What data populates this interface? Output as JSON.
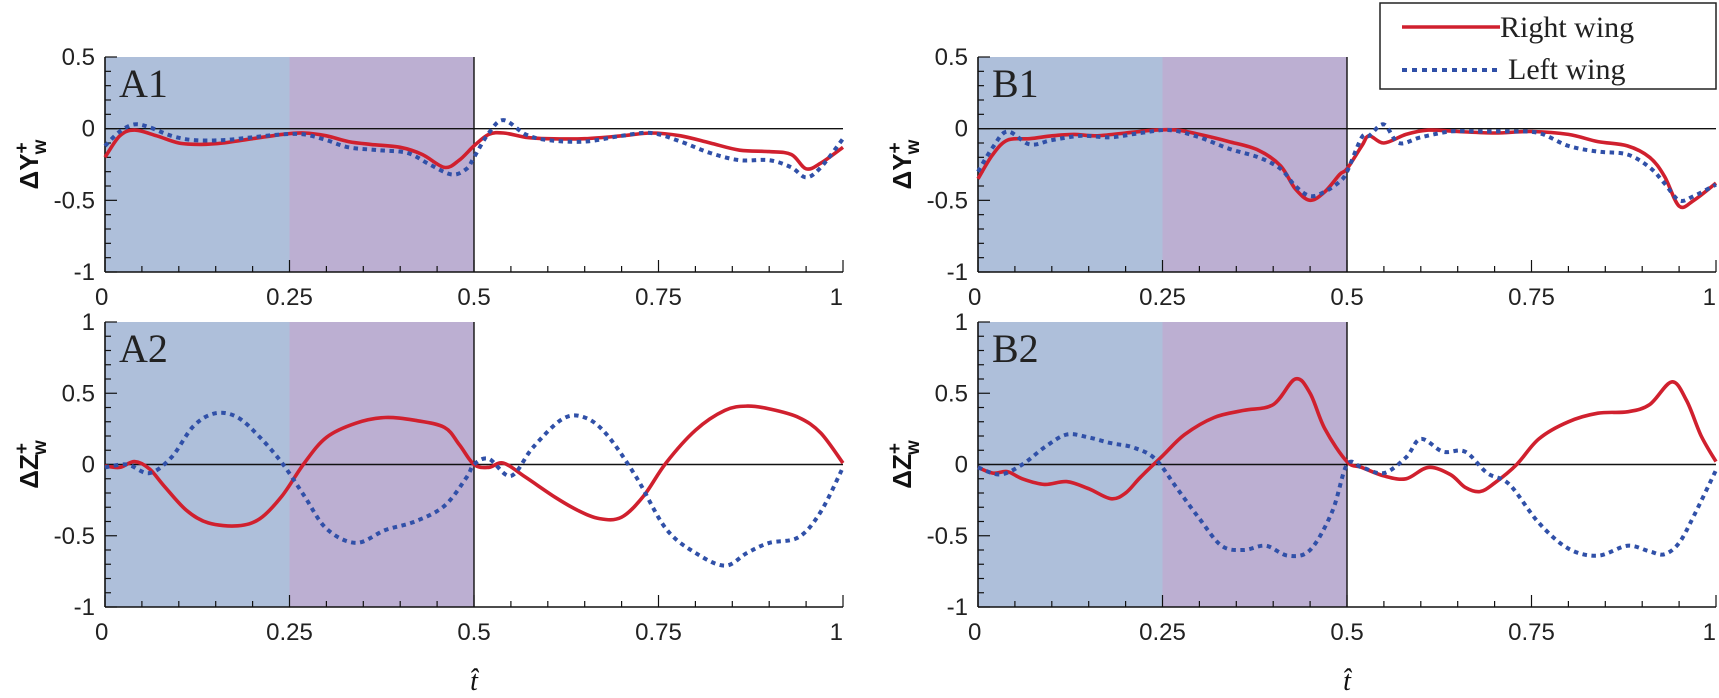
{
  "colors": {
    "right_wing": "#d0202e",
    "left_wing": "#3050a8",
    "phase1_band": "#aebfda",
    "phase2_band": "#bcafd2"
  },
  "legend": {
    "right_label": "Right wing",
    "left_label": "Left wing"
  },
  "chart_data": [
    {
      "panel": "A1",
      "type": "line",
      "ylabel": "ΔY",
      "ylabel_sup": "+",
      "ylabel_sub": "w",
      "xlabel": "",
      "xlim": [
        0,
        1
      ],
      "ylim": [
        -1,
        0.5
      ],
      "xticks": [
        0,
        0.25,
        0.5,
        0.75,
        1
      ],
      "xtick_labels": [
        "0",
        "0.25",
        "0.5",
        "0.75",
        "1"
      ],
      "yticks": [
        0.5,
        0,
        -0.5,
        -1
      ],
      "ytick_labels": [
        "0.5",
        "0",
        "-0.5",
        "-1"
      ],
      "shaded_bands": [
        [
          0,
          0.25
        ],
        [
          0.25,
          0.5
        ]
      ],
      "series": [
        {
          "name": "Right wing",
          "style": "solid",
          "x": [
            0,
            0.02,
            0.04,
            0.07,
            0.1,
            0.13,
            0.16,
            0.2,
            0.24,
            0.27,
            0.3,
            0.33,
            0.36,
            0.4,
            0.43,
            0.46,
            0.48,
            0.5,
            0.52,
            0.54,
            0.57,
            0.6,
            0.65,
            0.7,
            0.74,
            0.78,
            0.82,
            0.86,
            0.9,
            0.93,
            0.95,
            0.97,
            1
          ],
          "y": [
            -0.2,
            -0.05,
            -0.01,
            -0.05,
            -0.1,
            -0.11,
            -0.1,
            -0.07,
            -0.04,
            -0.03,
            -0.05,
            -0.09,
            -0.11,
            -0.13,
            -0.18,
            -0.27,
            -0.22,
            -0.12,
            -0.04,
            -0.03,
            -0.06,
            -0.07,
            -0.07,
            -0.05,
            -0.03,
            -0.05,
            -0.1,
            -0.15,
            -0.16,
            -0.18,
            -0.28,
            -0.24,
            -0.13
          ]
        },
        {
          "name": "Left wing",
          "style": "dotted",
          "x": [
            0,
            0.02,
            0.04,
            0.06,
            0.09,
            0.12,
            0.16,
            0.2,
            0.24,
            0.27,
            0.3,
            0.33,
            0.37,
            0.41,
            0.44,
            0.47,
            0.49,
            0.5,
            0.52,
            0.54,
            0.57,
            0.6,
            0.65,
            0.7,
            0.74,
            0.78,
            0.82,
            0.86,
            0.9,
            0.93,
            0.95,
            0.97,
            1
          ],
          "y": [
            -0.12,
            -0.02,
            0.03,
            0.01,
            -0.05,
            -0.08,
            -0.08,
            -0.06,
            -0.04,
            -0.04,
            -0.08,
            -0.13,
            -0.15,
            -0.17,
            -0.25,
            -0.32,
            -0.28,
            -0.2,
            -0.03,
            0.06,
            -0.04,
            -0.08,
            -0.09,
            -0.05,
            -0.03,
            -0.09,
            -0.17,
            -0.22,
            -0.22,
            -0.27,
            -0.34,
            -0.27,
            -0.07
          ]
        }
      ]
    },
    {
      "panel": "A2",
      "type": "line",
      "ylabel": "ΔZ",
      "ylabel_sup": "+",
      "ylabel_sub": "w",
      "xlabel": "t̂",
      "xlim": [
        0,
        1
      ],
      "ylim": [
        -1,
        1
      ],
      "xticks": [
        0,
        0.25,
        0.5,
        0.75,
        1
      ],
      "xtick_labels": [
        "0",
        "0.25",
        "0.5",
        "0.75",
        "1"
      ],
      "yticks": [
        1,
        0.5,
        0,
        -0.5,
        -1
      ],
      "ytick_labels": [
        "1",
        "0.5",
        "0",
        "-0.5",
        "-1"
      ],
      "shaded_bands": [
        [
          0,
          0.25
        ],
        [
          0.25,
          0.5
        ]
      ],
      "series": [
        {
          "name": "Right wing",
          "style": "solid",
          "x": [
            0,
            0.02,
            0.04,
            0.06,
            0.08,
            0.11,
            0.14,
            0.18,
            0.21,
            0.24,
            0.27,
            0.3,
            0.34,
            0.38,
            0.42,
            0.46,
            0.48,
            0.5,
            0.52,
            0.54,
            0.57,
            0.61,
            0.64,
            0.67,
            0.7,
            0.73,
            0.76,
            0.8,
            0.84,
            0.87,
            0.9,
            0.94,
            0.97,
            1
          ],
          "y": [
            -0.01,
            -0.02,
            0.02,
            -0.03,
            -0.15,
            -0.32,
            -0.41,
            -0.43,
            -0.38,
            -0.22,
            0.01,
            0.19,
            0.29,
            0.33,
            0.31,
            0.26,
            0.14,
            0.0,
            -0.02,
            0.01,
            -0.09,
            -0.23,
            -0.32,
            -0.38,
            -0.37,
            -0.22,
            0.01,
            0.24,
            0.38,
            0.41,
            0.39,
            0.33,
            0.22,
            0.01
          ]
        },
        {
          "name": "Left wing",
          "style": "dotted",
          "x": [
            0,
            0.03,
            0.06,
            0.09,
            0.12,
            0.15,
            0.18,
            0.21,
            0.24,
            0.27,
            0.3,
            0.34,
            0.38,
            0.42,
            0.46,
            0.49,
            0.5,
            0.52,
            0.55,
            0.58,
            0.62,
            0.65,
            0.68,
            0.72,
            0.76,
            0.8,
            0.84,
            0.87,
            0.9,
            0.94,
            0.97,
            1
          ],
          "y": [
            -0.02,
            0.0,
            -0.06,
            0.05,
            0.27,
            0.36,
            0.33,
            0.19,
            0.01,
            -0.22,
            -0.45,
            -0.55,
            -0.46,
            -0.4,
            -0.29,
            -0.09,
            0.0,
            0.04,
            -0.08,
            0.12,
            0.32,
            0.33,
            0.21,
            -0.09,
            -0.45,
            -0.62,
            -0.71,
            -0.62,
            -0.55,
            -0.51,
            -0.33,
            -0.02
          ]
        }
      ]
    },
    {
      "panel": "B1",
      "type": "line",
      "ylabel": "ΔY",
      "ylabel_sup": "+",
      "ylabel_sub": "w",
      "xlabel": "",
      "xlim": [
        0,
        1
      ],
      "ylim": [
        -1,
        0.5
      ],
      "xticks": [
        0,
        0.25,
        0.5,
        0.75,
        1
      ],
      "xtick_labels": [
        "0",
        "0.25",
        "0.5",
        "0.75",
        "1"
      ],
      "yticks": [
        0.5,
        0,
        -0.5,
        -1
      ],
      "ytick_labels": [
        "0.5",
        "0",
        "-0.5",
        "-1"
      ],
      "shaded_bands": [
        [
          0,
          0.25
        ],
        [
          0.25,
          0.5
        ]
      ],
      "series": [
        {
          "name": "Right wing",
          "style": "solid",
          "x": [
            0,
            0.02,
            0.04,
            0.07,
            0.1,
            0.13,
            0.16,
            0.2,
            0.24,
            0.27,
            0.3,
            0.34,
            0.38,
            0.41,
            0.43,
            0.45,
            0.47,
            0.49,
            0.5,
            0.52,
            0.53,
            0.55,
            0.58,
            0.61,
            0.65,
            0.7,
            0.75,
            0.8,
            0.84,
            0.88,
            0.91,
            0.93,
            0.95,
            0.97,
            1
          ],
          "y": [
            -0.35,
            -0.18,
            -0.08,
            -0.07,
            -0.05,
            -0.04,
            -0.05,
            -0.03,
            -0.01,
            -0.01,
            -0.04,
            -0.09,
            -0.15,
            -0.26,
            -0.42,
            -0.5,
            -0.44,
            -0.32,
            -0.28,
            -0.12,
            -0.05,
            -0.1,
            -0.04,
            -0.01,
            -0.02,
            -0.03,
            -0.02,
            -0.04,
            -0.09,
            -0.12,
            -0.2,
            -0.33,
            -0.54,
            -0.5,
            -0.38
          ]
        },
        {
          "name": "Left wing",
          "style": "dotted",
          "x": [
            0,
            0.02,
            0.04,
            0.07,
            0.1,
            0.14,
            0.18,
            0.22,
            0.26,
            0.3,
            0.34,
            0.38,
            0.41,
            0.43,
            0.45,
            0.47,
            0.49,
            0.5,
            0.52,
            0.53,
            0.55,
            0.57,
            0.6,
            0.64,
            0.68,
            0.72,
            0.76,
            0.8,
            0.84,
            0.88,
            0.91,
            0.93,
            0.95,
            0.97,
            1
          ],
          "y": [
            -0.3,
            -0.13,
            -0.02,
            -0.11,
            -0.08,
            -0.05,
            -0.06,
            -0.03,
            -0.01,
            -0.06,
            -0.14,
            -0.2,
            -0.28,
            -0.4,
            -0.47,
            -0.44,
            -0.37,
            -0.3,
            -0.06,
            -0.05,
            0.03,
            -0.1,
            -0.06,
            -0.02,
            -0.02,
            -0.02,
            -0.03,
            -0.12,
            -0.16,
            -0.18,
            -0.27,
            -0.38,
            -0.5,
            -0.47,
            -0.39
          ]
        }
      ]
    },
    {
      "panel": "B2",
      "type": "line",
      "ylabel": "ΔZ",
      "ylabel_sup": "+",
      "ylabel_sub": "w",
      "xlabel": "t̂",
      "xlim": [
        0,
        1
      ],
      "ylim": [
        -1,
        1
      ],
      "xticks": [
        0,
        0.25,
        0.5,
        0.75,
        1
      ],
      "xtick_labels": [
        "0",
        "0.25",
        "0.5",
        "0.75",
        "1"
      ],
      "yticks": [
        1,
        0.5,
        0,
        -0.5,
        -1
      ],
      "ytick_labels": [
        "1",
        "0.5",
        "0",
        "-0.5",
        "-1"
      ],
      "shaded_bands": [
        [
          0,
          0.25
        ],
        [
          0.25,
          0.5
        ]
      ],
      "series": [
        {
          "name": "Right wing",
          "style": "solid",
          "x": [
            0,
            0.02,
            0.04,
            0.06,
            0.09,
            0.12,
            0.15,
            0.18,
            0.2,
            0.22,
            0.25,
            0.28,
            0.32,
            0.36,
            0.4,
            0.43,
            0.45,
            0.47,
            0.5,
            0.52,
            0.55,
            0.58,
            0.61,
            0.64,
            0.66,
            0.68,
            0.7,
            0.73,
            0.76,
            0.8,
            0.84,
            0.88,
            0.91,
            0.94,
            0.96,
            0.98,
            1
          ],
          "y": [
            -0.02,
            -0.06,
            -0.05,
            -0.1,
            -0.14,
            -0.12,
            -0.17,
            -0.24,
            -0.2,
            -0.09,
            0.06,
            0.21,
            0.33,
            0.38,
            0.42,
            0.6,
            0.5,
            0.25,
            0.02,
            -0.02,
            -0.08,
            -0.1,
            -0.02,
            -0.07,
            -0.16,
            -0.19,
            -0.13,
            0.0,
            0.18,
            0.3,
            0.36,
            0.37,
            0.42,
            0.58,
            0.45,
            0.2,
            0.02
          ]
        },
        {
          "name": "Left wing",
          "style": "dotted",
          "x": [
            0,
            0.03,
            0.06,
            0.09,
            0.12,
            0.15,
            0.18,
            0.21,
            0.24,
            0.27,
            0.3,
            0.33,
            0.36,
            0.39,
            0.42,
            0.45,
            0.48,
            0.5,
            0.52,
            0.55,
            0.58,
            0.6,
            0.63,
            0.66,
            0.69,
            0.72,
            0.76,
            0.8,
            0.84,
            0.88,
            0.91,
            0.93,
            0.95,
            0.97,
            1
          ],
          "y": [
            -0.02,
            -0.07,
            0.0,
            0.12,
            0.21,
            0.19,
            0.15,
            0.12,
            0.04,
            -0.17,
            -0.38,
            -0.57,
            -0.6,
            -0.57,
            -0.64,
            -0.6,
            -0.33,
            0.0,
            -0.02,
            -0.06,
            0.05,
            0.18,
            0.09,
            0.09,
            -0.06,
            -0.14,
            -0.41,
            -0.59,
            -0.64,
            -0.57,
            -0.61,
            -0.63,
            -0.55,
            -0.36,
            -0.04
          ]
        }
      ]
    }
  ]
}
